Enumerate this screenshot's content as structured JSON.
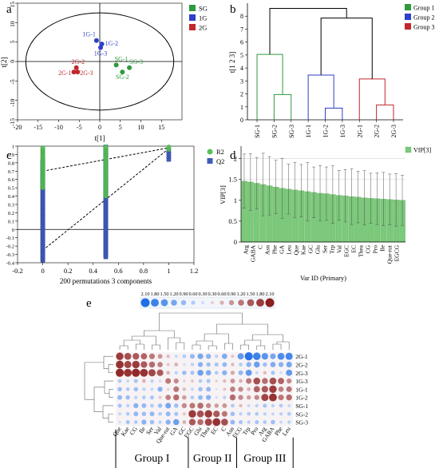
{
  "panel_labels": {
    "a": "a",
    "b": "b",
    "c": "c",
    "d": "d",
    "e": "e"
  },
  "colors": {
    "SG": "#2e9a3c",
    "1G": "#2f3fc9",
    "2G": "#c0272d",
    "R2": "#58c05a",
    "Q2": "#3f5bb8",
    "VIP": "#7bc97a"
  },
  "chart_data": [
    {
      "id": "a",
      "type": "scatter",
      "title": "",
      "xlabel": "t[1]",
      "ylabel": "t[2]",
      "xlim": [
        -20,
        20
      ],
      "ylim": [
        -15,
        15
      ],
      "xticks": [
        "-20",
        "-15",
        "-10",
        "-5",
        "0",
        "5",
        "10",
        "15"
      ],
      "yticks": [
        "15",
        "10",
        "5",
        "0",
        "-5",
        "-10",
        "-15"
      ],
      "legend": [
        "SG",
        "1G",
        "2G"
      ],
      "legend_position": "top-right",
      "series": [
        {
          "name": "SG",
          "points": [
            {
              "label": "SG-1",
              "x": 4.0,
              "y": -0.9
            },
            {
              "label": "SG-3",
              "x": 7.2,
              "y": -1.6
            },
            {
              "label": "SG-2",
              "x": 5.5,
              "y": -2.7
            }
          ]
        },
        {
          "name": "1G",
          "points": [
            {
              "label": "1G-1",
              "x": -0.8,
              "y": 5.4
            },
            {
              "label": "1G-2",
              "x": 0.5,
              "y": 4.5
            },
            {
              "label": "1G-3",
              "x": 0.2,
              "y": 3.6
            }
          ]
        },
        {
          "name": "2G",
          "points": [
            {
              "label": "2G-2",
              "x": -5.7,
              "y": -1.6
            },
            {
              "label": "2G-1",
              "x": -6.3,
              "y": -2.7
            },
            {
              "label": "2G-3",
              "x": -5.4,
              "y": -2.7
            }
          ]
        }
      ]
    },
    {
      "id": "b",
      "type": "dendrogram",
      "title": "",
      "ylabel": "t[1 2 3]",
      "ylim": [
        0,
        9
      ],
      "yticks": [
        "0",
        "1",
        "2",
        "3",
        "4",
        "5",
        "6",
        "7",
        "8"
      ],
      "leaves": [
        "SG-1",
        "SG-2",
        "SG-3",
        "1G-1",
        "1G-2",
        "1G-3",
        "2G-1",
        "2G-2",
        "2G-3"
      ],
      "legend": [
        "Group 1",
        "Group 2",
        "Group 3"
      ],
      "legend_position": "top-right",
      "merges": [
        {
          "left": "SG-2",
          "right": "SG-3",
          "height": 1.95,
          "group": "Group 1"
        },
        {
          "left": "SG-1",
          "right": "SG-2,SG-3",
          "height": 5.05,
          "group": "Group 1"
        },
        {
          "left": "1G-2",
          "right": "1G-3",
          "height": 0.9,
          "group": "Group 2"
        },
        {
          "left": "1G-1",
          "right": "1G-2,1G-3",
          "height": 3.45,
          "group": "Group 2"
        },
        {
          "left": "2G-2",
          "right": "2G-3",
          "height": 1.15,
          "group": "Group 3"
        },
        {
          "left": "2G-1",
          "right": "2G-2,2G-3",
          "height": 3.15,
          "group": "Group 3"
        },
        {
          "left": "Group 2",
          "right": "Group 3",
          "height": 7.85,
          "group": "none"
        },
        {
          "left": "Group 1",
          "right": "Group 2+3",
          "height": 8.6,
          "group": "none"
        }
      ]
    },
    {
      "id": "c",
      "type": "scatter",
      "title": "",
      "xlabel": "200 permutations 3 components",
      "xlim": [
        -0.2,
        1.2
      ],
      "ylim": [
        -0.4,
        1.0
      ],
      "xticks": [
        "-0.2",
        "0",
        "0.2",
        "0.4",
        "0.6",
        "0.8",
        "1",
        "1.2"
      ],
      "yticks": [
        "1",
        "0.9",
        "0.8",
        "0.7",
        "0.6",
        "0.5",
        "0.4",
        "0.3",
        "0.2",
        "0.1",
        "0",
        "-0.1",
        "-0.2",
        "-0.3",
        "-0.4"
      ],
      "legend": [
        "R2",
        "Q2"
      ],
      "legend_position": "top-right",
      "series": [
        {
          "name": "R2",
          "x_columns": [
            0,
            0.5,
            1
          ],
          "y_ranges": [
            [
              0.5,
              0.98
            ],
            [
              0.4,
              0.99
            ],
            [
              0.96,
              0.99
            ]
          ],
          "intercept": 0.7
        },
        {
          "name": "Q2",
          "x_columns": [
            0,
            0.5,
            1
          ],
          "y_ranges": [
            [
              -0.37,
              0.82
            ],
            [
              -0.33,
              0.99
            ],
            [
              0.84,
              0.94
            ]
          ],
          "intercept": -0.25
        }
      ]
    },
    {
      "id": "d",
      "type": "bar",
      "title": "",
      "xlabel": "Var ID (Primary)",
      "ylabel": "VIP[3]",
      "ylim": [
        0,
        2.3
      ],
      "yticks": [
        "0",
        "0.5",
        "1",
        "1.5",
        "2"
      ],
      "legend": [
        "VIP[3]"
      ],
      "legend_position": "top-right",
      "tick_labels_shown": [
        "Arg",
        "GABA",
        "C",
        "Asn",
        "Phe",
        "GA",
        "Leu",
        "Que",
        "Kae",
        "GC",
        "Glu",
        "Ser",
        "Trp",
        "Val",
        "EGC",
        "EC",
        "Thea",
        "CG",
        "Pro",
        "Ile",
        "Que-rut",
        "EGCG"
      ],
      "values": [
        1.46,
        1.44,
        1.41,
        1.38,
        1.35,
        1.32,
        1.29,
        1.27,
        1.25,
        1.23,
        1.21,
        1.19,
        1.17,
        1.16,
        1.14,
        1.12,
        1.11,
        1.09,
        1.08,
        1.06,
        1.05,
        1.04,
        1.03,
        1.02,
        1.01,
        1.0
      ],
      "errors": [
        0.65,
        0.68,
        0.62,
        0.75,
        0.7,
        0.64,
        0.72,
        0.6,
        0.66,
        0.63,
        0.7,
        0.61,
        0.66,
        0.64,
        0.69,
        0.6,
        0.63,
        0.67,
        0.62,
        0.65,
        0.6,
        0.62,
        0.64,
        0.61,
        0.63,
        0.6
      ]
    },
    {
      "id": "e",
      "type": "heatmap",
      "title": "",
      "scale_labels": [
        "2.10",
        "1.80",
        "1.50",
        "1.20",
        "0.90",
        "0.60",
        "0.30",
        "0.30",
        "0.60",
        "0.90",
        "1.20",
        "1.50",
        "1.80",
        "2.10"
      ],
      "rows": [
        "2G-1",
        "2G-2",
        "2G-3",
        "1G-3",
        "1G-1",
        "1G-2",
        "SG-1",
        "SG-2",
        "SG-3"
      ],
      "columns": [
        "Que",
        "Kae",
        "CG",
        "Ile",
        "Ser",
        "Val",
        "Que-rut",
        "GA",
        "GC",
        "EGC",
        "Glu",
        "Thea",
        "EC",
        "C",
        "Asn",
        "ECG",
        "Trp",
        "Pro",
        "Arg",
        "GABA",
        "Phe",
        "Leu"
      ],
      "column_groups": [
        {
          "name": "Group I",
          "columns": 9
        },
        {
          "name": "Group II",
          "columns": 6
        },
        {
          "name": "Group III",
          "columns": 7
        }
      ],
      "values": [
        [
          1.8,
          1.6,
          1.5,
          1.4,
          1.2,
          0.9,
          0.5,
          -0.4,
          -0.6,
          -0.9,
          -1.2,
          -1.0,
          -0.5,
          -1.1,
          0.4,
          -1.4,
          -2.0,
          -1.8,
          -1.5,
          -1.2,
          -1.6,
          -1.7
        ],
        [
          1.9,
          1.7,
          1.8,
          1.5,
          1.3,
          1.1,
          0.4,
          0.6,
          -0.3,
          -0.5,
          -1.0,
          -0.8,
          -0.7,
          -0.9,
          0.5,
          -0.6,
          -1.0,
          -1.3,
          -0.8,
          -1.1,
          -1.0,
          -1.2
        ],
        [
          2.0,
          1.9,
          2.0,
          1.9,
          1.7,
          1.5,
          0.6,
          -0.5,
          -0.8,
          -0.7,
          -1.3,
          -1.1,
          -0.6,
          -1.0,
          0.7,
          -0.9,
          -1.4,
          -0.4,
          0.5,
          -0.7,
          -0.3,
          -1.4
        ],
        [
          -0.6,
          -0.4,
          -0.7,
          0.6,
          -0.5,
          -0.3,
          1.2,
          1.0,
          0.3,
          0.4,
          -0.6,
          -0.7,
          0.3,
          0.5,
          0.9,
          0.6,
          1.2,
          1.6,
          1.3,
          1.6,
          1.4,
          1.0
        ],
        [
          -0.8,
          -0.6,
          -0.8,
          -0.5,
          -0.4,
          -1.0,
          0.3,
          1.2,
          0.5,
          -0.4,
          -0.8,
          -0.9,
          -0.2,
          0.4,
          1.1,
          1.0,
          0.6,
          1.4,
          1.5,
          1.8,
          1.1,
          1.2
        ],
        [
          -0.9,
          -0.8,
          -0.5,
          -0.6,
          -0.7,
          0.4,
          1.1,
          1.3,
          0.8,
          -0.6,
          -0.9,
          -1.0,
          -0.3,
          -0.5,
          1.3,
          1.0,
          0.8,
          1.0,
          1.7,
          1.9,
          1.2,
          1.3
        ],
        [
          -0.7,
          -0.5,
          -1.0,
          -0.9,
          -0.6,
          -0.8,
          -1.2,
          -0.8,
          1.0,
          1.2,
          1.3,
          1.0,
          0.8,
          0.9,
          -0.6,
          0.5,
          -0.4,
          -0.5,
          -0.7,
          -0.5,
          -0.6,
          -0.4
        ],
        [
          -0.4,
          -0.6,
          -0.9,
          -0.8,
          -0.9,
          -0.6,
          -0.9,
          -0.7,
          0.4,
          1.8,
          1.6,
          1.8,
          1.5,
          1.2,
          -0.8,
          -0.5,
          -0.6,
          -0.6,
          -0.5,
          -0.4,
          -0.5,
          -0.6
        ],
        [
          -0.3,
          -0.7,
          -0.6,
          -1.0,
          -0.8,
          -0.5,
          -1.0,
          -1.3,
          0.6,
          1.5,
          1.3,
          1.7,
          1.9,
          1.6,
          -0.9,
          -0.7,
          -0.5,
          -0.7,
          -0.6,
          -0.8,
          -0.4,
          -0.5
        ]
      ]
    }
  ]
}
